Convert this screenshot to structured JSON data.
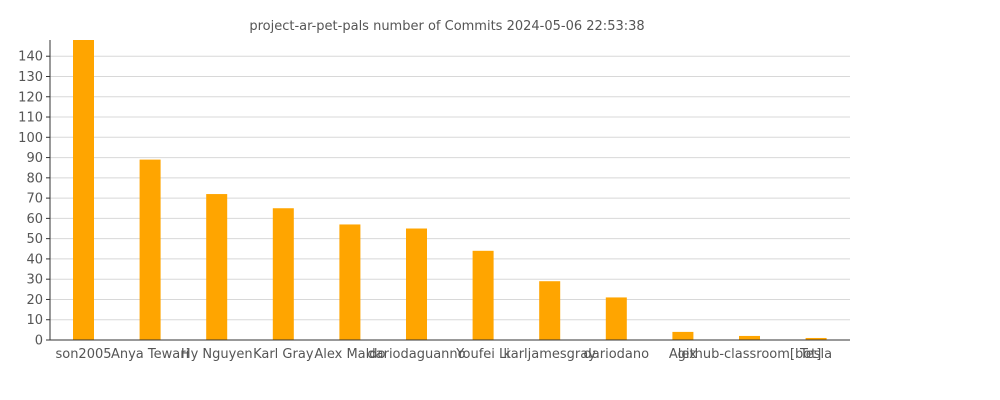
{
  "chart_data": {
    "type": "bar",
    "title": "project-ar-pet-pals number of Commits 2024-05-06 22:53:38",
    "xlabel": "",
    "ylabel": "",
    "ylim": [
      0,
      148
    ],
    "yticks": [
      0,
      10,
      20,
      30,
      40,
      50,
      60,
      70,
      80,
      90,
      100,
      110,
      120,
      130,
      140
    ],
    "grid": true,
    "bar_color": "#ffa500",
    "categories": [
      "son2005",
      "Anya Tewari",
      "Hy Nguyen",
      "Karl Gray",
      "Alex Maldo",
      "dariodaguanno",
      "Youfei Li",
      "karljamesgray",
      "dariodano",
      "Alex",
      "github-classroom[bot]",
      "Tesla"
    ],
    "values": [
      148,
      89,
      72,
      65,
      57,
      55,
      44,
      29,
      21,
      4,
      2,
      1
    ]
  }
}
